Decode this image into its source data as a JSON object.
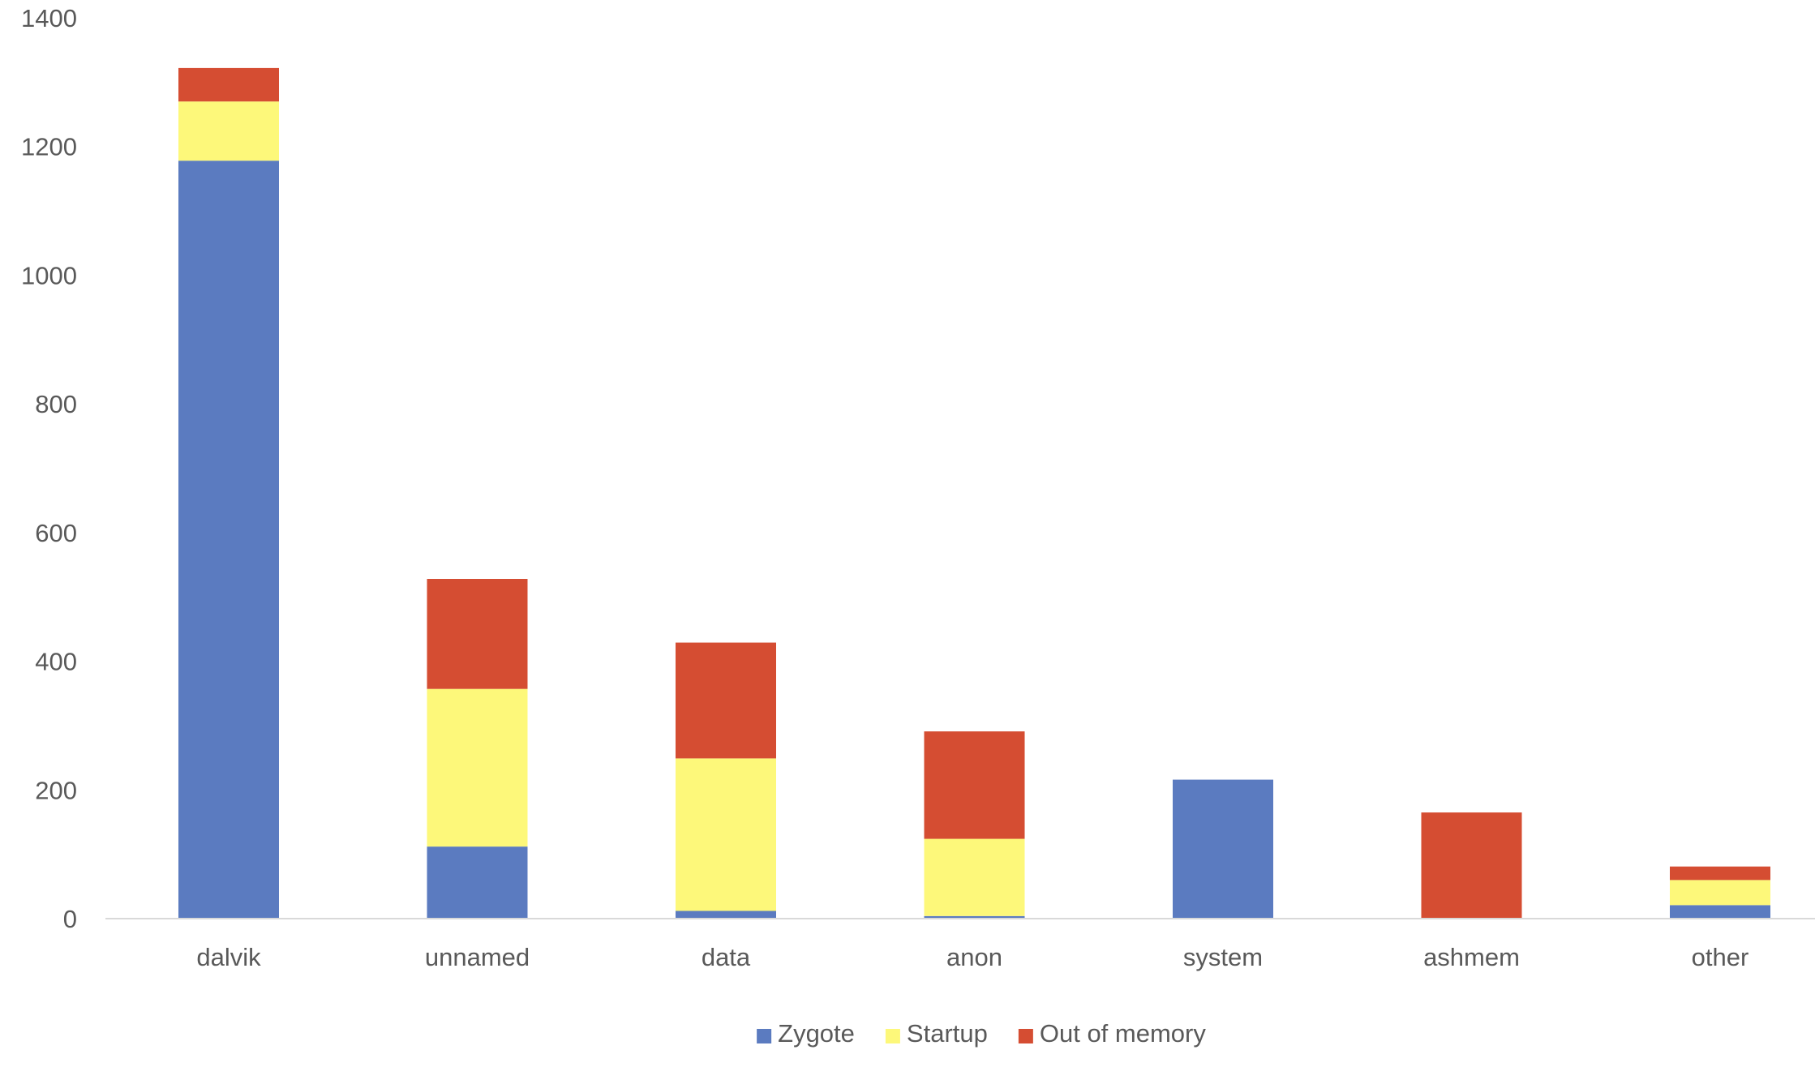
{
  "chart_data": {
    "type": "bar",
    "stacked": true,
    "categories": [
      "dalvik",
      "unnamed",
      "data",
      "anon",
      "system",
      "ashmem",
      "other"
    ],
    "series": [
      {
        "name": "Zygote",
        "color": "#5b7bc0",
        "values": [
          1178,
          112,
          12,
          4,
          216,
          0,
          21
        ]
      },
      {
        "name": "Startup",
        "color": "#fdf87a",
        "values": [
          92,
          245,
          237,
          120,
          0,
          0,
          39
        ]
      },
      {
        "name": "Out of memory",
        "color": "#d54d32",
        "values": [
          52,
          171,
          180,
          167,
          0,
          165,
          21
        ]
      }
    ],
    "yticks": [
      0,
      200,
      400,
      600,
      800,
      1000,
      1200,
      1400
    ],
    "ylim": [
      0,
      1400
    ],
    "grid": false,
    "legend_position": "bottom"
  }
}
